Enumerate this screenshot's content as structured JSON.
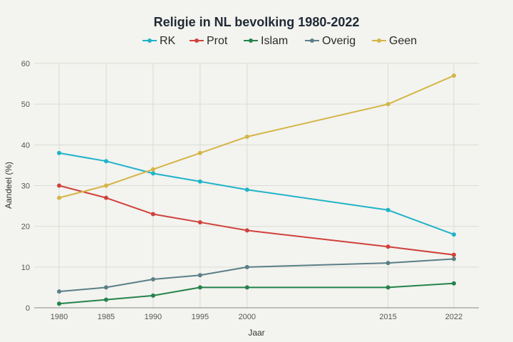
{
  "chart_data": {
    "type": "line",
    "title": "Religie in NL bevolking 1980-2022",
    "xlabel": "Jaar",
    "ylabel": "Aandeel (%)",
    "x": [
      1980,
      1985,
      1990,
      1995,
      2000,
      2015,
      2022
    ],
    "ylim": [
      0,
      60
    ],
    "yticks": [
      0,
      10,
      20,
      30,
      40,
      50,
      60
    ],
    "grid": true,
    "legend_position": "top",
    "series": [
      {
        "name": "RK",
        "color": "#1fb3c9",
        "values": [
          38,
          36,
          33,
          31,
          29,
          24,
          18
        ]
      },
      {
        "name": "Prot",
        "color": "#d0413b",
        "values": [
          30,
          27,
          23,
          21,
          19,
          15,
          13
        ]
      },
      {
        "name": "Islam",
        "color": "#24834a",
        "values": [
          1,
          2,
          3,
          5,
          5,
          5,
          6
        ]
      },
      {
        "name": "Overig",
        "color": "#5a7f87",
        "values": [
          4,
          5,
          7,
          8,
          10,
          11,
          12
        ]
      },
      {
        "name": "Geen",
        "color": "#d4b546",
        "values": [
          27,
          30,
          34,
          38,
          42,
          50,
          57
        ]
      }
    ]
  }
}
